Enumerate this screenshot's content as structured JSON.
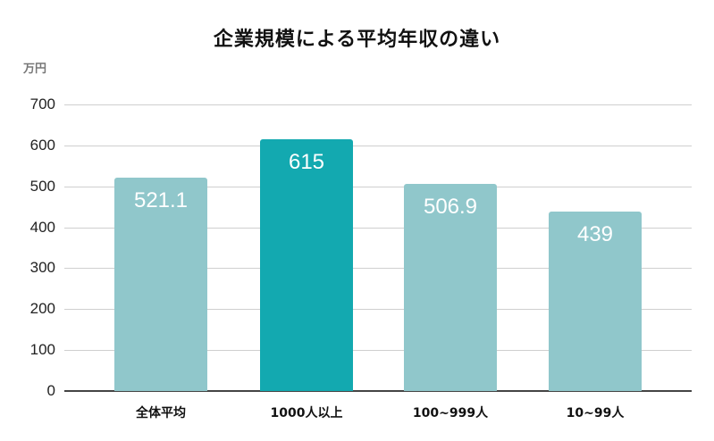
{
  "chart_data": {
    "type": "bar",
    "title": "企業規模による平均年収の違い",
    "xlabel": "",
    "ylabel": "万円",
    "ylim": [
      0,
      700
    ],
    "yticks": [
      0,
      100,
      200,
      300,
      400,
      500,
      600,
      700
    ],
    "grid": true,
    "legend": null,
    "categories": [
      "全体平均",
      "1000人以上",
      "100~999人",
      "10~99人"
    ],
    "values": [
      521.1,
      615,
      506.9,
      439
    ],
    "data_labels": [
      "521.1",
      "615",
      "506.9",
      "439"
    ],
    "colors": [
      "#90c7cb",
      "#13a9b0",
      "#90c7cb",
      "#90c7cb"
    ],
    "highlight_index": 1
  },
  "labels": {
    "title": "企業規模による平均年収の違い",
    "unit": "万円"
  }
}
